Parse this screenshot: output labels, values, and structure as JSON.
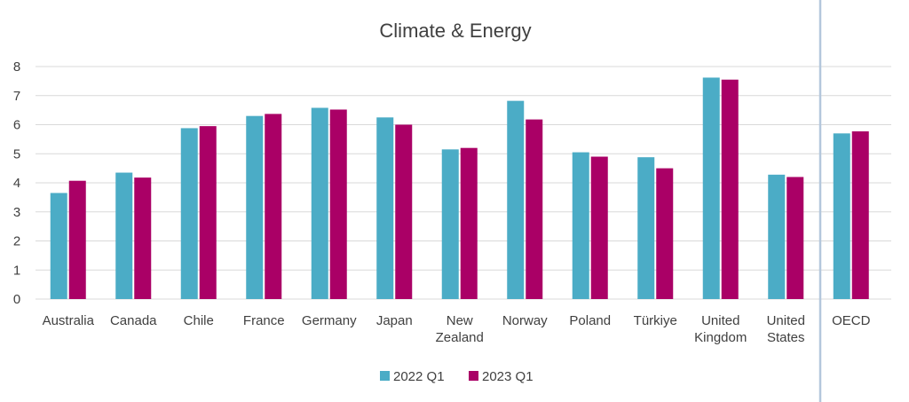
{
  "chart_data": {
    "type": "bar",
    "title": "Climate & Energy",
    "xlabel": "",
    "ylabel": "",
    "ylim": [
      0,
      8
    ],
    "yticks": [
      0,
      1,
      2,
      3,
      4,
      5,
      6,
      7,
      8
    ],
    "grid": true,
    "legend_position": "bottom",
    "categories": [
      [
        "Australia"
      ],
      [
        "Canada"
      ],
      [
        "Chile"
      ],
      [
        "France"
      ],
      [
        "Germany"
      ],
      [
        "Japan"
      ],
      [
        "New",
        "Zealand"
      ],
      [
        "Norway"
      ],
      [
        "Poland"
      ],
      [
        "Türkiye"
      ],
      [
        "United",
        "Kingdom"
      ],
      [
        "United",
        "States"
      ],
      [
        "OECD"
      ]
    ],
    "separator_before_index": 12,
    "series": [
      {
        "name": "2022 Q1",
        "color": "#4BACC6",
        "values": [
          3.65,
          4.35,
          5.88,
          6.3,
          6.58,
          6.25,
          5.15,
          6.82,
          5.05,
          4.88,
          7.62,
          4.28,
          5.7
        ]
      },
      {
        "name": "2023 Q1",
        "color": "#AA0066",
        "values": [
          4.07,
          4.18,
          5.95,
          6.37,
          6.52,
          6.0,
          5.2,
          6.18,
          4.9,
          4.5,
          7.55,
          4.2,
          5.77
        ]
      }
    ]
  }
}
